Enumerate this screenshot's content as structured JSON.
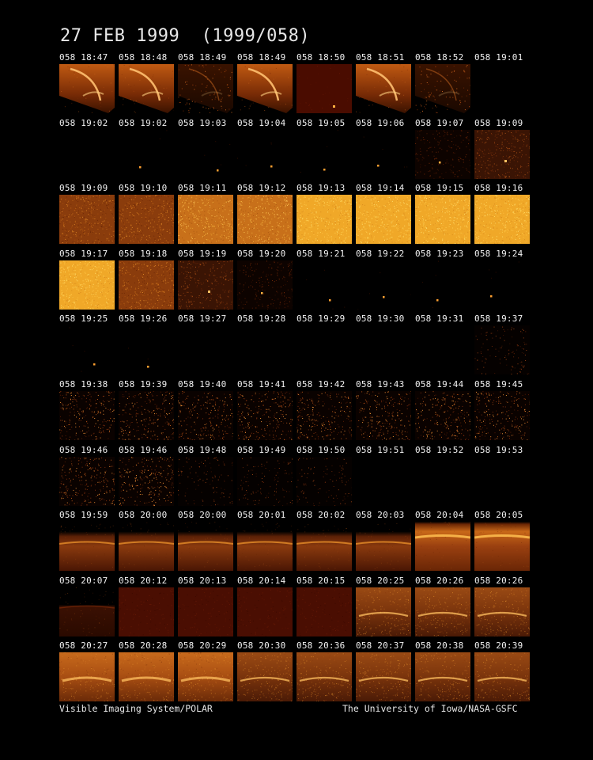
{
  "title": "27 FEB 1999  (1999/058)",
  "footer_left": "Visible Imaging System/POLAR",
  "footer_right": "The University of Iowa/NASA-GSFC",
  "frames": [
    {
      "label": "058 18:47",
      "kind": "arc"
    },
    {
      "label": "058 18:48",
      "kind": "arc"
    },
    {
      "label": "058 18:49",
      "kind": "arc-faint"
    },
    {
      "label": "058 18:49",
      "kind": "arc"
    },
    {
      "label": "058 18:50",
      "kind": "dim-red-dot"
    },
    {
      "label": "058 18:51",
      "kind": "arc"
    },
    {
      "label": "058 18:52",
      "kind": "arc-faint"
    },
    {
      "label": "058 19:01",
      "kind": "black"
    },
    {
      "label": "058 19:02",
      "kind": "black"
    },
    {
      "label": "058 19:02",
      "kind": "dot"
    },
    {
      "label": "058 19:03",
      "kind": "dot"
    },
    {
      "label": "058 19:04",
      "kind": "dot"
    },
    {
      "label": "058 19:05",
      "kind": "dot"
    },
    {
      "label": "058 19:06",
      "kind": "dot"
    },
    {
      "label": "058 19:07",
      "kind": "noise-faint"
    },
    {
      "label": "058 19:09",
      "kind": "noise-dark"
    },
    {
      "label": "058 19:09",
      "kind": "noise-mid"
    },
    {
      "label": "058 19:10",
      "kind": "noise-mid"
    },
    {
      "label": "058 19:11",
      "kind": "noise-bright"
    },
    {
      "label": "058 19:12",
      "kind": "noise-bright"
    },
    {
      "label": "058 19:13",
      "kind": "noise-yellow"
    },
    {
      "label": "058 19:14",
      "kind": "noise-yellow"
    },
    {
      "label": "058 19:15",
      "kind": "noise-yellow"
    },
    {
      "label": "058 19:16",
      "kind": "noise-yellow"
    },
    {
      "label": "058 19:17",
      "kind": "noise-yellow"
    },
    {
      "label": "058 19:18",
      "kind": "noise-mid"
    },
    {
      "label": "058 19:19",
      "kind": "noise-dark"
    },
    {
      "label": "058 19:20",
      "kind": "noise-faint"
    },
    {
      "label": "058 19:21",
      "kind": "dot"
    },
    {
      "label": "058 19:22",
      "kind": "dot"
    },
    {
      "label": "058 19:23",
      "kind": "dot"
    },
    {
      "label": "058 19:24",
      "kind": "dot"
    },
    {
      "label": "058 19:25",
      "kind": "dot"
    },
    {
      "label": "058 19:26",
      "kind": "dot"
    },
    {
      "label": "058 19:27",
      "kind": "black"
    },
    {
      "label": "058 19:28",
      "kind": "black"
    },
    {
      "label": "058 19:29",
      "kind": "black"
    },
    {
      "label": "058 19:30",
      "kind": "black"
    },
    {
      "label": "058 19:31",
      "kind": "black"
    },
    {
      "label": "058 19:37",
      "kind": "speckle-faint"
    },
    {
      "label": "058 19:38",
      "kind": "speckle"
    },
    {
      "label": "058 19:39",
      "kind": "speckle"
    },
    {
      "label": "058 19:40",
      "kind": "speckle"
    },
    {
      "label": "058 19:41",
      "kind": "speckle"
    },
    {
      "label": "058 19:42",
      "kind": "speckle"
    },
    {
      "label": "058 19:43",
      "kind": "speckle"
    },
    {
      "label": "058 19:44",
      "kind": "speckle"
    },
    {
      "label": "058 19:45",
      "kind": "speckle"
    },
    {
      "label": "058 19:46",
      "kind": "speckle"
    },
    {
      "label": "058 19:46",
      "kind": "speckle"
    },
    {
      "label": "058 19:48",
      "kind": "speckle-faint"
    },
    {
      "label": "058 19:49",
      "kind": "speckle-faint"
    },
    {
      "label": "058 19:50",
      "kind": "speckle-faint"
    },
    {
      "label": "058 19:51",
      "kind": "black"
    },
    {
      "label": "058 19:52",
      "kind": "black"
    },
    {
      "label": "058 19:53",
      "kind": "black"
    },
    {
      "label": "058 19:59",
      "kind": "limb"
    },
    {
      "label": "058 20:00",
      "kind": "limb"
    },
    {
      "label": "058 20:00",
      "kind": "limb"
    },
    {
      "label": "058 20:01",
      "kind": "limb"
    },
    {
      "label": "058 20:02",
      "kind": "limb"
    },
    {
      "label": "058 20:03",
      "kind": "limb"
    },
    {
      "label": "058 20:04",
      "kind": "limb-bright"
    },
    {
      "label": "058 20:05",
      "kind": "limb-bright"
    },
    {
      "label": "058 20:07",
      "kind": "limb-dim"
    },
    {
      "label": "058 20:12",
      "kind": "dark-red"
    },
    {
      "label": "058 20:13",
      "kind": "dark-red"
    },
    {
      "label": "058 20:14",
      "kind": "dark-red"
    },
    {
      "label": "058 20:15",
      "kind": "dark-red"
    },
    {
      "label": "058 20:25",
      "kind": "aurora"
    },
    {
      "label": "058 20:26",
      "kind": "aurora"
    },
    {
      "label": "058 20:26",
      "kind": "aurora"
    },
    {
      "label": "058 20:27",
      "kind": "aurora-bright"
    },
    {
      "label": "058 20:28",
      "kind": "aurora-bright"
    },
    {
      "label": "058 20:29",
      "kind": "aurora-bright"
    },
    {
      "label": "058 20:30",
      "kind": "aurora"
    },
    {
      "label": "058 20:36",
      "kind": "aurora"
    },
    {
      "label": "058 20:37",
      "kind": "aurora"
    },
    {
      "label": "058 20:38",
      "kind": "aurora"
    },
    {
      "label": "058 20:39",
      "kind": "aurora"
    }
  ]
}
